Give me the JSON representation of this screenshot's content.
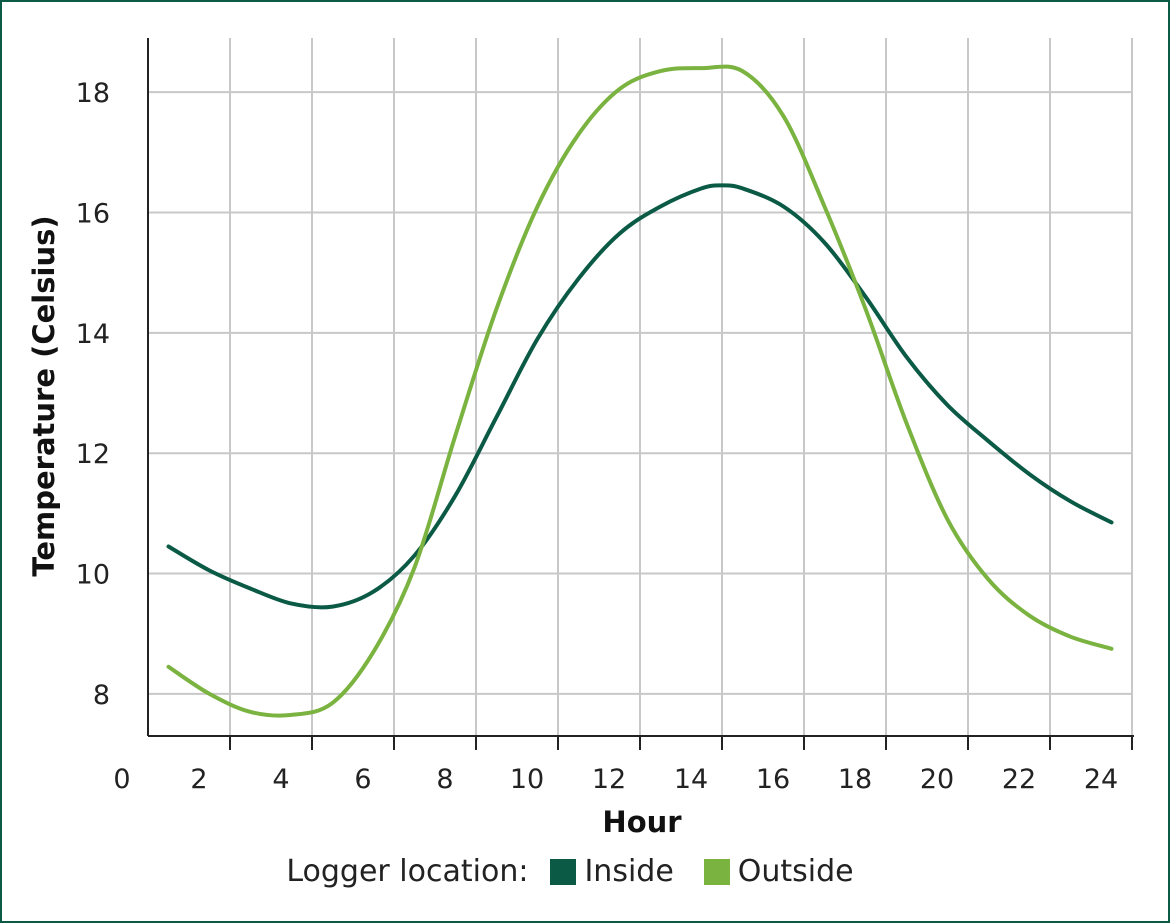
{
  "chart_data": {
    "type": "line",
    "xlabel": "Hour",
    "ylabel": "Temperature (Celsius)",
    "xlim": [
      0,
      24
    ],
    "ylim": [
      7.3,
      18.9
    ],
    "xticks": [
      0,
      2,
      4,
      6,
      8,
      10,
      12,
      14,
      16,
      18,
      20,
      22,
      24
    ],
    "yticks": [
      8,
      10,
      12,
      14,
      16,
      18
    ],
    "grid": true,
    "legend_title": "Logger location:",
    "legend_position": "bottom",
    "series": [
      {
        "name": "Inside",
        "color": "#0b5a45",
        "x": [
          0.5,
          1.5,
          2.5,
          3.5,
          4.5,
          5.5,
          6.5,
          7.5,
          8.5,
          9.5,
          10.5,
          11.5,
          12.5,
          13.5,
          14,
          14.5,
          15.5,
          16.5,
          17.5,
          18.5,
          19.5,
          20.5,
          21.5,
          22.5,
          23.5
        ],
        "y": [
          10.45,
          10.05,
          9.75,
          9.5,
          9.45,
          9.7,
          10.3,
          11.3,
          12.6,
          13.9,
          14.9,
          15.65,
          16.1,
          16.4,
          16.45,
          16.4,
          16.1,
          15.5,
          14.6,
          13.6,
          12.8,
          12.2,
          11.65,
          11.2,
          10.85
        ]
      },
      {
        "name": "Outside",
        "color": "#7ab340",
        "x": [
          0.5,
          1.5,
          2.5,
          3.5,
          4.5,
          5.5,
          6.5,
          7.5,
          8.5,
          9.5,
          10.5,
          11.5,
          12.5,
          13.5,
          14.5,
          15.5,
          16.5,
          17.5,
          18.5,
          19.5,
          20.5,
          21.5,
          22.5,
          23.5
        ],
        "y": [
          8.45,
          8.0,
          7.7,
          7.65,
          7.85,
          8.7,
          10.1,
          12.3,
          14.4,
          16.1,
          17.3,
          18.05,
          18.35,
          18.4,
          18.35,
          17.6,
          16.1,
          14.4,
          12.5,
          10.9,
          9.9,
          9.3,
          8.95,
          8.75
        ]
      }
    ]
  }
}
